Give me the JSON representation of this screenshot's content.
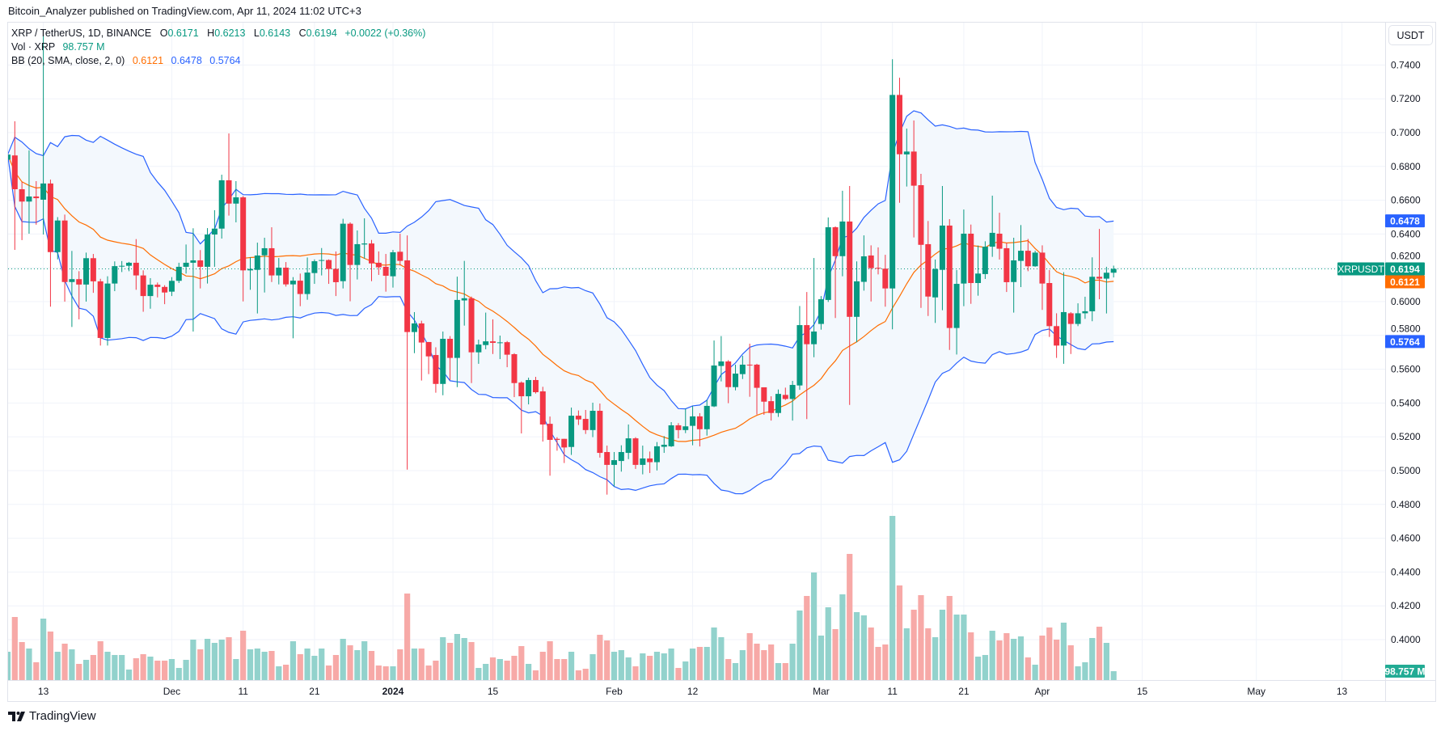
{
  "attribution": "Bitcoin_Analyzer published on TradingView.com, Apr 11, 2024 11:02 UTC+3",
  "legend": {
    "symbol": "XRP / TetherUS, 1D, BINANCE",
    "ohlc": [
      {
        "label": "O",
        "value": "0.6171"
      },
      {
        "label": "H",
        "value": "0.6213"
      },
      {
        "label": "L",
        "value": "0.6143"
      },
      {
        "label": "C",
        "value": "0.6194"
      }
    ],
    "change": "+0.0022 (+0.36%)",
    "volume_label": "Vol · XRP",
    "volume_value": "98.757 M",
    "bb_label": "BB (20, SMA, close, 2, 0)",
    "bb_basis": "0.6121",
    "bb_upper": "0.6478",
    "bb_lower": "0.5764"
  },
  "currency_button": "USDT",
  "footer_logo": "TradingView",
  "colors": {
    "up": "#089981",
    "down": "#f23645",
    "volume_up": "#92d2cc",
    "volume_down": "#f7a9a7",
    "bb_band": "#2962ff",
    "bb_basis": "#ff6d00",
    "bb_fill": "#f3f8fd",
    "grid": "#f0f3fa",
    "volume_badge": "#22ab94"
  },
  "chart_data": {
    "type": "candlestick",
    "title": "XRP / TetherUS, 1D, BINANCE",
    "interval": "1D",
    "start_date": "2023-11-08",
    "ohlc": [
      [
        0.684,
        0.689,
        0.682,
        0.687
      ],
      [
        0.6865,
        0.7067,
        0.6306,
        0.6665
      ],
      [
        0.6665,
        0.6708,
        0.6364,
        0.6592
      ],
      [
        0.6592,
        0.6895,
        0.6402,
        0.6622
      ],
      [
        0.6622,
        0.6713,
        0.6455,
        0.6612
      ],
      [
        0.6603,
        0.758,
        0.6397,
        0.6699
      ],
      [
        0.6699,
        0.6722,
        0.597,
        0.6293
      ],
      [
        0.6293,
        0.65,
        0.625,
        0.648
      ],
      [
        0.648,
        0.6515,
        0.6,
        0.6116
      ],
      [
        0.6116,
        0.63,
        0.585,
        0.6133
      ],
      [
        0.6133,
        0.618,
        0.5895,
        0.6101
      ],
      [
        0.6101,
        0.629,
        0.6,
        0.6257
      ],
      [
        0.6257,
        0.6282,
        0.6052,
        0.612
      ],
      [
        0.612,
        0.6135,
        0.574,
        0.5785
      ],
      [
        0.5785,
        0.615,
        0.574,
        0.6107
      ],
      [
        0.6107,
        0.6238,
        0.6062,
        0.621
      ],
      [
        0.621,
        0.624,
        0.6175,
        0.6212
      ],
      [
        0.6212,
        0.6235,
        0.618,
        0.623
      ],
      [
        0.623,
        0.637,
        0.607,
        0.6155
      ],
      [
        0.6155,
        0.6185,
        0.594,
        0.6033
      ],
      [
        0.6033,
        0.6139,
        0.5958,
        0.61
      ],
      [
        0.61,
        0.6113,
        0.6025,
        0.6087
      ],
      [
        0.6087,
        0.6097,
        0.5985,
        0.6054
      ],
      [
        0.6059,
        0.6145,
        0.6033,
        0.6123
      ],
      [
        0.6123,
        0.623,
        0.611,
        0.6206
      ],
      [
        0.6206,
        0.6338,
        0.6166,
        0.623
      ],
      [
        0.623,
        0.6434,
        0.5823,
        0.6244
      ],
      [
        0.6244,
        0.6305,
        0.6078,
        0.6206
      ],
      [
        0.6206,
        0.6435,
        0.6107,
        0.6397
      ],
      [
        0.6397,
        0.6541,
        0.6206,
        0.6432
      ],
      [
        0.6432,
        0.6751,
        0.6373,
        0.6718
      ],
      [
        0.6718,
        0.6995,
        0.6509,
        0.658
      ],
      [
        0.658,
        0.6713,
        0.6469,
        0.6617
      ],
      [
        0.6617,
        0.6625,
        0.6001,
        0.6185
      ],
      [
        0.6185,
        0.6262,
        0.607,
        0.6193
      ],
      [
        0.6188,
        0.6349,
        0.593,
        0.6273
      ],
      [
        0.6274,
        0.6378,
        0.6054,
        0.6316
      ],
      [
        0.6316,
        0.644,
        0.6116,
        0.6155
      ],
      [
        0.6155,
        0.6258,
        0.6102,
        0.6201
      ],
      [
        0.6201,
        0.6234,
        0.6089,
        0.6102
      ],
      [
        0.6102,
        0.6145,
        0.5783,
        0.6124
      ],
      [
        0.6124,
        0.6166,
        0.5973,
        0.6045
      ],
      [
        0.6045,
        0.6261,
        0.6011,
        0.6172
      ],
      [
        0.6169,
        0.625,
        0.6105,
        0.6239
      ],
      [
        0.6244,
        0.6317,
        0.6155,
        0.6246
      ],
      [
        0.6246,
        0.625,
        0.6105,
        0.6193
      ],
      [
        0.6194,
        0.6297,
        0.6033,
        0.6115
      ],
      [
        0.6121,
        0.649,
        0.6078,
        0.6461
      ],
      [
        0.6461,
        0.6469,
        0.6002,
        0.6217
      ],
      [
        0.6217,
        0.6421,
        0.6131,
        0.634
      ],
      [
        0.6338,
        0.6493,
        0.6254,
        0.6344
      ],
      [
        0.6344,
        0.6365,
        0.6121,
        0.6226
      ],
      [
        0.623,
        0.6297,
        0.6158,
        0.6203
      ],
      [
        0.6206,
        0.6282,
        0.6059,
        0.6153
      ],
      [
        0.615,
        0.6306,
        0.6083,
        0.6292
      ],
      [
        0.6295,
        0.6402,
        0.6214,
        0.6241
      ],
      [
        0.6244,
        0.6392,
        0.5006,
        0.582
      ],
      [
        0.582,
        0.5938,
        0.5695,
        0.5871
      ],
      [
        0.5871,
        0.5887,
        0.5533,
        0.5758
      ],
      [
        0.5761,
        0.5761,
        0.5571,
        0.5676
      ],
      [
        0.5684,
        0.573,
        0.5461,
        0.5513
      ],
      [
        0.5513,
        0.5823,
        0.5446,
        0.578
      ],
      [
        0.578,
        0.5796,
        0.5536,
        0.5667
      ],
      [
        0.5667,
        0.6148,
        0.5494,
        0.601
      ],
      [
        0.6007,
        0.6241,
        0.5858,
        0.602
      ],
      [
        0.602,
        0.603,
        0.5518,
        0.57
      ],
      [
        0.57,
        0.5775,
        0.5632,
        0.5746
      ],
      [
        0.5743,
        0.5935,
        0.5718,
        0.5765
      ],
      [
        0.5765,
        0.5895,
        0.569,
        0.5756
      ],
      [
        0.5757,
        0.5799,
        0.566,
        0.5759
      ],
      [
        0.576,
        0.5767,
        0.5612,
        0.5686
      ],
      [
        0.5689,
        0.5695,
        0.5435,
        0.5518
      ],
      [
        0.5521,
        0.5528,
        0.522,
        0.544
      ],
      [
        0.544,
        0.555,
        0.5392,
        0.5536
      ],
      [
        0.5536,
        0.5555,
        0.5456,
        0.5464
      ],
      [
        0.5469,
        0.5496,
        0.5172,
        0.5273
      ],
      [
        0.5277,
        0.532,
        0.497,
        0.5182
      ],
      [
        0.5188,
        0.5198,
        0.5118,
        0.5182
      ],
      [
        0.5188,
        0.5188,
        0.5045,
        0.5137
      ],
      [
        0.514,
        0.5373,
        0.5093,
        0.5325
      ],
      [
        0.5325,
        0.5356,
        0.527,
        0.5303
      ],
      [
        0.5306,
        0.5359,
        0.5217,
        0.524
      ],
      [
        0.524,
        0.5402,
        0.5198,
        0.5354
      ],
      [
        0.5354,
        0.5397,
        0.5077,
        0.5105
      ],
      [
        0.511,
        0.5148,
        0.4858,
        0.5034
      ],
      [
        0.5034,
        0.511,
        0.4906,
        0.5062
      ],
      [
        0.5057,
        0.515,
        0.4994,
        0.511
      ],
      [
        0.5105,
        0.5273,
        0.5068,
        0.5191
      ],
      [
        0.5191,
        0.5198,
        0.501,
        0.5034
      ],
      [
        0.5034,
        0.5148,
        0.4978,
        0.5072
      ],
      [
        0.5072,
        0.5113,
        0.4986,
        0.505
      ],
      [
        0.505,
        0.5169,
        0.5001,
        0.5144
      ],
      [
        0.5141,
        0.5204,
        0.5105,
        0.5153
      ],
      [
        0.5144,
        0.5287,
        0.514,
        0.5268
      ],
      [
        0.5268,
        0.5281,
        0.5191,
        0.524
      ],
      [
        0.524,
        0.5367,
        0.5222,
        0.5262
      ],
      [
        0.5265,
        0.5383,
        0.515,
        0.5321
      ],
      [
        0.5321,
        0.534,
        0.5143,
        0.5245
      ],
      [
        0.5245,
        0.5419,
        0.5207,
        0.5383
      ],
      [
        0.538,
        0.577,
        0.5376,
        0.5622
      ],
      [
        0.5619,
        0.5796,
        0.5528,
        0.5646
      ],
      [
        0.5646,
        0.5654,
        0.5399,
        0.5494
      ],
      [
        0.5494,
        0.5627,
        0.5475,
        0.5574
      ],
      [
        0.5571,
        0.568,
        0.5542,
        0.5627
      ],
      [
        0.5627,
        0.5751,
        0.5437,
        0.5624
      ],
      [
        0.5627,
        0.5632,
        0.5332,
        0.549
      ],
      [
        0.5493,
        0.5493,
        0.533,
        0.5408
      ],
      [
        0.5411,
        0.544,
        0.5296,
        0.5341
      ],
      [
        0.5341,
        0.548,
        0.5318,
        0.5454
      ],
      [
        0.5448,
        0.5491,
        0.5418,
        0.5424
      ],
      [
        0.5424,
        0.5531,
        0.5296,
        0.5507
      ],
      [
        0.5504,
        0.5974,
        0.5478,
        0.5861
      ],
      [
        0.5861,
        0.6057,
        0.5305,
        0.5748
      ],
      [
        0.5748,
        0.6258,
        0.5671,
        0.5823
      ],
      [
        0.5868,
        0.6033,
        0.5834,
        0.6014
      ],
      [
        0.601,
        0.6498,
        0.5998,
        0.644
      ],
      [
        0.644,
        0.6445,
        0.5903,
        0.6269
      ],
      [
        0.6269,
        0.6656,
        0.615,
        0.6474
      ],
      [
        0.6474,
        0.6684,
        0.5389,
        0.591
      ],
      [
        0.591,
        0.6238,
        0.5759,
        0.612
      ],
      [
        0.6117,
        0.6392,
        0.6065,
        0.6268
      ],
      [
        0.6273,
        0.6333,
        0.6001,
        0.6198
      ],
      [
        0.62,
        0.6321,
        0.6161,
        0.6195
      ],
      [
        0.6195,
        0.6277,
        0.597,
        0.6078
      ],
      [
        0.6078,
        0.7434,
        0.5836,
        0.7223
      ],
      [
        0.7223,
        0.7325,
        0.6585,
        0.6872
      ],
      [
        0.6871,
        0.7024,
        0.6681,
        0.6888
      ],
      [
        0.6888,
        0.7072,
        0.638,
        0.6686
      ],
      [
        0.6689,
        0.6756,
        0.5963,
        0.6336
      ],
      [
        0.634,
        0.6477,
        0.5915,
        0.603
      ],
      [
        0.6025,
        0.6249,
        0.5874,
        0.6193
      ],
      [
        0.6188,
        0.6684,
        0.5949,
        0.645
      ],
      [
        0.645,
        0.6488,
        0.5714,
        0.5844
      ],
      [
        0.5844,
        0.6187,
        0.5687,
        0.6105
      ],
      [
        0.6107,
        0.6545,
        0.5973,
        0.6402
      ],
      [
        0.6402,
        0.6456,
        0.5987,
        0.611
      ],
      [
        0.611,
        0.6332,
        0.6035,
        0.6166
      ],
      [
        0.6163,
        0.6357,
        0.6134,
        0.6325
      ],
      [
        0.6325,
        0.6627,
        0.6265,
        0.6407
      ],
      [
        0.6402,
        0.6526,
        0.6249,
        0.6313
      ],
      [
        0.6316,
        0.6349,
        0.6057,
        0.6115
      ],
      [
        0.6116,
        0.6378,
        0.5935,
        0.6244
      ],
      [
        0.6241,
        0.6453,
        0.6086,
        0.6301
      ],
      [
        0.6301,
        0.6371,
        0.618,
        0.6209
      ],
      [
        0.6209,
        0.6301,
        0.6206,
        0.629
      ],
      [
        0.629,
        0.6333,
        0.5951,
        0.6107
      ],
      [
        0.611,
        0.6187,
        0.5791,
        0.5855
      ],
      [
        0.5855,
        0.5931,
        0.5667,
        0.574
      ],
      [
        0.574,
        0.6174,
        0.5632,
        0.5938
      ],
      [
        0.5931,
        0.5938,
        0.569,
        0.5868
      ],
      [
        0.5868,
        0.599,
        0.5855,
        0.5931
      ],
      [
        0.5931,
        0.6029,
        0.5898,
        0.5943
      ],
      [
        0.5943,
        0.6262,
        0.5884,
        0.6147
      ],
      [
        0.6147,
        0.643,
        0.6014,
        0.6136
      ],
      [
        0.6136,
        0.6206,
        0.593,
        0.6171
      ],
      [
        0.6171,
        0.6213,
        0.6143,
        0.6194
      ]
    ],
    "volume_m": [
      315,
      702,
      423,
      351,
      198,
      684,
      540,
      315,
      405,
      342,
      180,
      225,
      279,
      432,
      315,
      279,
      279,
      117,
      243,
      288,
      261,
      216,
      216,
      234,
      135,
      225,
      450,
      342,
      459,
      414,
      450,
      477,
      234,
      549,
      342,
      351,
      315,
      324,
      153,
      171,
      432,
      288,
      351,
      270,
      351,
      162,
      279,
      459,
      387,
      333,
      432,
      324,
      162,
      153,
      153,
      342,
      963,
      351,
      351,
      162,
      216,
      477,
      414,
      513,
      468,
      423,
      135,
      180,
      252,
      234,
      216,
      270,
      378,
      180,
      108,
      315,
      432,
      234,
      234,
      315,
      108,
      126,
      288,
      504,
      441,
      315,
      333,
      252,
      153,
      297,
      270,
      315,
      297,
      351,
      135,
      207,
      351,
      369,
      369,
      585,
      477,
      234,
      189,
      333,
      522,
      405,
      333,
      396,
      189,
      189,
      405,
      774,
      936,
      1197,
      495,
      810,
      567,
      954,
      1404,
      756,
      720,
      585,
      369,
      396,
      1827,
      1053,
      576,
      783,
      945,
      576,
      477,
      783,
      936,
      729,
      729,
      531,
      261,
      279,
      549,
      441,
      522,
      459,
      486,
      252,
      171,
      495,
      585,
      450,
      639,
      387,
      153,
      198,
      468,
      594,
      414,
      98.757
    ],
    "indicators": {
      "bb": {
        "period": 20,
        "stddev": 2,
        "source": "close"
      }
    },
    "price_axis": {
      "ylim": [
        0.38,
        0.755
      ],
      "ticks": [
        "0.7400",
        "0.7200",
        "0.7000",
        "0.6800",
        "0.6600",
        "0.6400",
        "0.6200",
        "0.6000",
        "0.5800",
        "0.5600",
        "0.5400",
        "0.5200",
        "0.5000",
        "0.4800",
        "0.4600",
        "0.4400",
        "0.4200",
        "0.4000"
      ]
    },
    "badges": {
      "symbol": "XRPUSDT",
      "last": "0.6194",
      "bb_basis": "0.6121",
      "bb_upper": "0.6478",
      "bb_lower": "0.5764",
      "volume": "98.757 M"
    },
    "time_axis": [
      {
        "label": "13",
        "date": "2023-11-13"
      },
      {
        "label": "Dec",
        "date": "2023-12-01"
      },
      {
        "label": "11",
        "date": "2023-12-11"
      },
      {
        "label": "21",
        "date": "2023-12-21"
      },
      {
        "label": "2024",
        "date": "2024-01-01",
        "bold": true
      },
      {
        "label": "15",
        "date": "2024-01-15"
      },
      {
        "label": "Feb",
        "date": "2024-02-01"
      },
      {
        "label": "12",
        "date": "2024-02-12"
      },
      {
        "label": "Mar",
        "date": "2024-03-01"
      },
      {
        "label": "11",
        "date": "2024-03-11"
      },
      {
        "label": "21",
        "date": "2024-03-21"
      },
      {
        "label": "Apr",
        "date": "2024-04-01"
      },
      {
        "label": "15",
        "date": "2024-04-15"
      },
      {
        "label": "May",
        "date": "2024-05-01"
      },
      {
        "label": "13",
        "date": "2024-05-13"
      }
    ]
  }
}
